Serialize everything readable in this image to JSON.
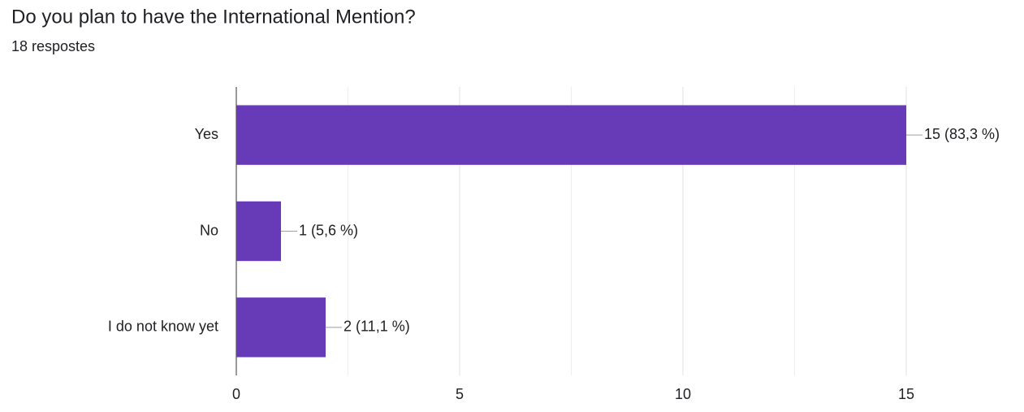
{
  "chart_data": {
    "type": "bar",
    "orientation": "horizontal",
    "title": "Do you plan to have the International Mention?",
    "subtitle": "18 respostes",
    "categories": [
      "Yes",
      "No",
      "I do not know yet"
    ],
    "values": [
      15,
      1,
      2
    ],
    "value_labels": [
      "15 (83,3 %)",
      "1 (5,6 %)",
      "2 (11,1 %)"
    ],
    "color": "#673ab7",
    "xlim": [
      0,
      15
    ],
    "xticks": [
      0,
      5,
      10,
      15
    ],
    "minor_xticks": [
      2.5,
      7.5,
      12.5
    ],
    "grid": true
  }
}
